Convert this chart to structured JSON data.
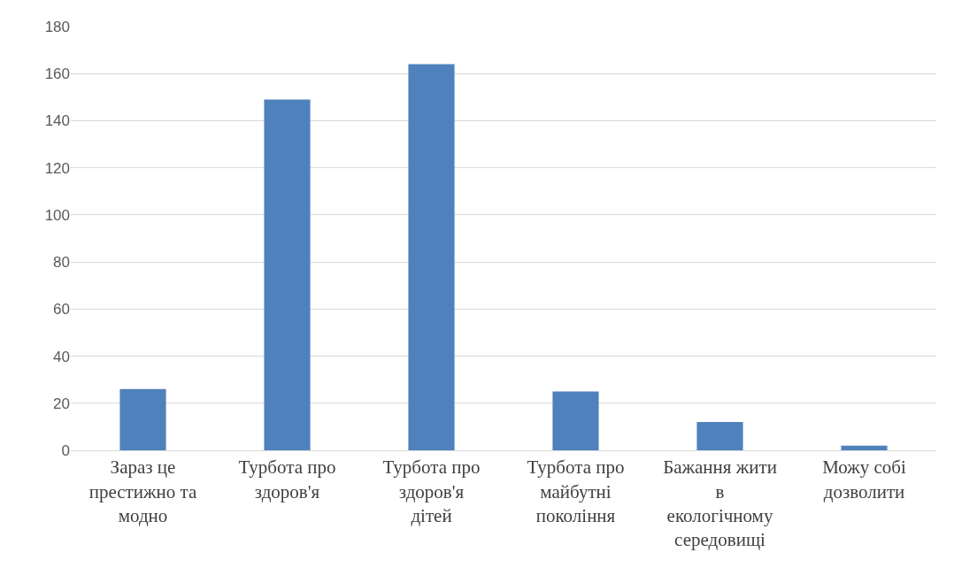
{
  "chart_data": {
    "type": "bar",
    "categories": [
      "Зараз це престижно та модно",
      "Турбота про здоров'я",
      "Турбота про здоров'я дітей",
      "Турбота про майбутні покоління",
      "Бажання жити в екологічному середовищі",
      "Можу собі дозволити"
    ],
    "values": [
      26,
      149,
      164,
      25,
      12,
      2
    ],
    "color": "#4f81bd",
    "ylim": [
      0,
      180
    ],
    "yticks": [
      0,
      20,
      40,
      60,
      80,
      100,
      120,
      140,
      160,
      180
    ],
    "grid": "y"
  }
}
